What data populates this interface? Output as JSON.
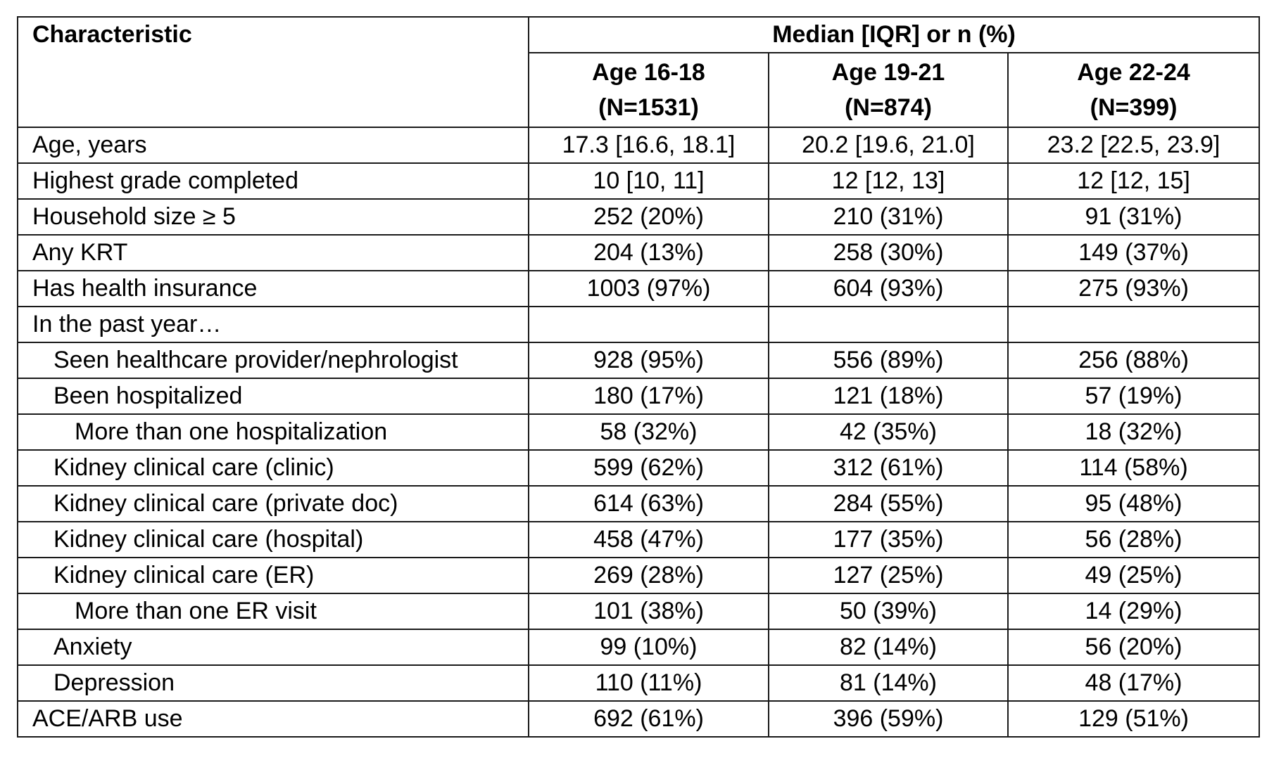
{
  "table": {
    "header": {
      "characteristic": "Characteristic",
      "group": "Median [IQR] or n (%)",
      "columns": [
        {
          "age": "Age 16-18",
          "n": "(N=1531)"
        },
        {
          "age": "Age 19-21",
          "n": "(N=874)"
        },
        {
          "age": "Age 22-24",
          "n": "(N=399)"
        }
      ]
    },
    "rows": [
      {
        "label": "Age, years",
        "indent": 0,
        "values": [
          "17.3 [16.6, 18.1]",
          "20.2 [19.6, 21.0]",
          "23.2 [22.5, 23.9]"
        ]
      },
      {
        "label": "Highest grade completed",
        "indent": 0,
        "values": [
          "10 [10, 11]",
          "12 [12, 13]",
          "12 [12, 15]"
        ]
      },
      {
        "label": "Household size ≥ 5",
        "indent": 0,
        "values": [
          "252 (20%)",
          "210 (31%)",
          "91 (31%)"
        ]
      },
      {
        "label": "Any KRT",
        "indent": 0,
        "values": [
          "204 (13%)",
          "258 (30%)",
          "149 (37%)"
        ]
      },
      {
        "label": "Has health insurance",
        "indent": 0,
        "values": [
          "1003 (97%)",
          "604 (93%)",
          "275 (93%)"
        ]
      },
      {
        "label": "In the past year…",
        "indent": 0,
        "values": [
          "",
          "",
          ""
        ]
      },
      {
        "label": "Seen healthcare provider/nephrologist",
        "indent": 1,
        "values": [
          "928 (95%)",
          "556 (89%)",
          "256 (88%)"
        ]
      },
      {
        "label": "Been hospitalized",
        "indent": 1,
        "values": [
          "180 (17%)",
          "121 (18%)",
          "57 (19%)"
        ]
      },
      {
        "label": "More than one hospitalization",
        "indent": 2,
        "values": [
          "58 (32%)",
          "42 (35%)",
          "18 (32%)"
        ]
      },
      {
        "label": "Kidney clinical care (clinic)",
        "indent": 1,
        "values": [
          "599 (62%)",
          "312 (61%)",
          "114 (58%)"
        ]
      },
      {
        "label": "Kidney clinical care (private doc)",
        "indent": 1,
        "values": [
          "614 (63%)",
          "284 (55%)",
          "95 (48%)"
        ]
      },
      {
        "label": "Kidney clinical care (hospital)",
        "indent": 1,
        "values": [
          "458 (47%)",
          "177 (35%)",
          "56 (28%)"
        ]
      },
      {
        "label": "Kidney clinical care (ER)",
        "indent": 1,
        "values": [
          "269 (28%)",
          "127 (25%)",
          "49 (25%)"
        ]
      },
      {
        "label": "More than one ER visit",
        "indent": 2,
        "values": [
          "101 (38%)",
          "50 (39%)",
          "14 (29%)"
        ]
      },
      {
        "label": "Anxiety",
        "indent": 1,
        "values": [
          "99 (10%)",
          "82 (14%)",
          "56 (20%)"
        ]
      },
      {
        "label": "Depression",
        "indent": 1,
        "values": [
          "110 (11%)",
          "81 (14%)",
          "48 (17%)"
        ]
      },
      {
        "label": "ACE/ARB use",
        "indent": 0,
        "values": [
          "692 (61%)",
          "396 (59%)",
          "129 (51%)"
        ]
      }
    ]
  }
}
